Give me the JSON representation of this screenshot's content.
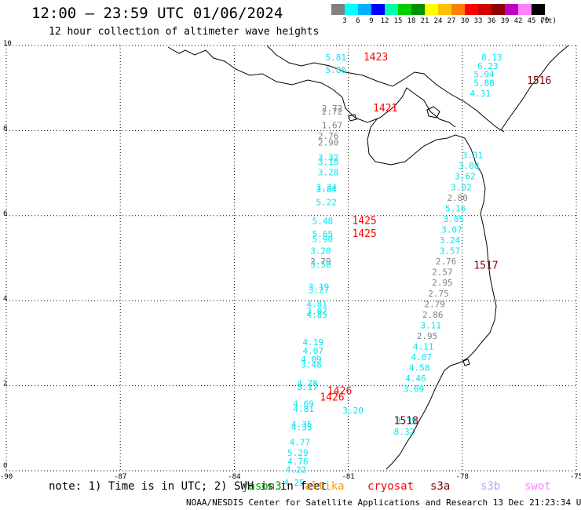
{
  "title": "12:00 – 23:59 UTC 01/06/2024",
  "subtitle": "12 hour collection of altimeter wave heights",
  "legend": {
    "unit": "(ft)",
    "ticks": [
      "3",
      "6",
      "9",
      "12",
      "15",
      "18",
      "21",
      "24",
      "27",
      "30",
      "33",
      "36",
      "39",
      "42",
      "45",
      "70"
    ],
    "colors": [
      "#808080",
      "#00ffff",
      "#00b0ff",
      "#0000ff",
      "#00ffaa",
      "#00d000",
      "#009000",
      "#ffff00",
      "#ffc000",
      "#ff8000",
      "#ff0000",
      "#d00000",
      "#900000",
      "#c000c0",
      "#ff80ff",
      "#000000"
    ]
  },
  "axes": {
    "x_ticks": [
      "-90",
      "-87",
      "-84",
      "-81",
      "-78",
      "-75"
    ],
    "y_ticks": [
      "0",
      "2",
      "4",
      "6",
      "8",
      "10"
    ]
  },
  "note": "note: 1) Time is in UTC; 2) SWH is in feet",
  "satellites": [
    {
      "name": "jason3",
      "color": "#00a000"
    },
    {
      "name": "altika",
      "color": "#ff9900"
    },
    {
      "name": "cryosat",
      "color": "#ff0000"
    },
    {
      "name": "s3a",
      "color": "#800000"
    },
    {
      "name": "s3b",
      "color": "#c0a0ff"
    },
    {
      "name": "swot",
      "color": "#ff80ff"
    }
  ],
  "footer": "NOAA/NESDIS Center for Satellite Applications and Research    13 Dec 21:23:34 UTC 2024",
  "colors": {
    "cyan": "#00e5ee",
    "gray": "#808080",
    "red": "#ff0000",
    "darkred": "#800000"
  },
  "map_data": {
    "lon_range": [
      -90,
      -75
    ],
    "lat_range": [
      0,
      10
    ],
    "time_labels": [
      {
        "text": "1423",
        "lon": -80.6,
        "lat": 9.65,
        "c": "red"
      },
      {
        "text": "1516",
        "lon": -76.3,
        "lat": 9.1,
        "c": "darkred"
      },
      {
        "text": "1421",
        "lon": -80.35,
        "lat": 8.45,
        "c": "red"
      },
      {
        "text": "1425",
        "lon": -80.9,
        "lat": 5.8,
        "c": "red"
      },
      {
        "text": "1425",
        "lon": -80.9,
        "lat": 5.5,
        "c": "red"
      },
      {
        "text": "1517",
        "lon": -77.7,
        "lat": 4.75,
        "c": "darkred"
      },
      {
        "text": "1426",
        "lon": -81.55,
        "lat": 1.8,
        "c": "red"
      },
      {
        "text": "1426",
        "lon": -81.75,
        "lat": 1.65,
        "c": "red"
      },
      {
        "text": "1518",
        "lon": -79.8,
        "lat": 1.1,
        "c": "darkred"
      }
    ],
    "wave_heights": [
      {
        "text": "5.81",
        "lon": -81.6,
        "lat": 9.65,
        "c": "cyan"
      },
      {
        "text": "5.80",
        "lon": -81.6,
        "lat": 9.35,
        "c": "cyan"
      },
      {
        "text": "8.13",
        "lon": -77.5,
        "lat": 9.65,
        "c": "cyan"
      },
      {
        "text": "6.23",
        "lon": -77.6,
        "lat": 9.45,
        "c": "cyan"
      },
      {
        "text": "5.94",
        "lon": -77.7,
        "lat": 9.25,
        "c": "cyan"
      },
      {
        "text": "5.88",
        "lon": -77.7,
        "lat": 9.05,
        "c": "cyan"
      },
      {
        "text": "4.31",
        "lon": -77.8,
        "lat": 8.8,
        "c": "cyan"
      },
      {
        "text": "2.72",
        "lon": -81.7,
        "lat": 8.45,
        "c": "gray"
      },
      {
        "text": "2.72",
        "lon": -81.7,
        "lat": 8.38,
        "c": "gray"
      },
      {
        "text": "1.67",
        "lon": -81.7,
        "lat": 8.05,
        "c": "gray"
      },
      {
        "text": "2.76",
        "lon": -81.8,
        "lat": 7.8,
        "c": "gray"
      },
      {
        "text": "2.90",
        "lon": -81.8,
        "lat": 7.65,
        "c": "gray"
      },
      {
        "text": "3.32",
        "lon": -81.8,
        "lat": 7.3,
        "c": "cyan"
      },
      {
        "text": "3.18",
        "lon": -81.8,
        "lat": 7.2,
        "c": "cyan"
      },
      {
        "text": "3.28",
        "lon": -81.8,
        "lat": 6.95,
        "c": "cyan"
      },
      {
        "text": "3.31",
        "lon": -78.0,
        "lat": 7.35,
        "c": "cyan"
      },
      {
        "text": "3.08",
        "lon": -78.1,
        "lat": 7.1,
        "c": "cyan"
      },
      {
        "text": "3.62",
        "lon": -78.2,
        "lat": 6.85,
        "c": "cyan"
      },
      {
        "text": "3.02",
        "lon": -78.3,
        "lat": 6.6,
        "c": "cyan"
      },
      {
        "text": "3.34",
        "lon": -81.85,
        "lat": 6.6,
        "c": "cyan"
      },
      {
        "text": "3.84",
        "lon": -81.85,
        "lat": 6.55,
        "c": "cyan"
      },
      {
        "text": "2.80",
        "lon": -78.4,
        "lat": 6.35,
        "c": "gray"
      },
      {
        "text": "5.22",
        "lon": -81.85,
        "lat": 6.25,
        "c": "cyan"
      },
      {
        "text": "5.16",
        "lon": -78.45,
        "lat": 6.1,
        "c": "cyan"
      },
      {
        "text": "3.05",
        "lon": -78.5,
        "lat": 5.85,
        "c": "cyan"
      },
      {
        "text": "5.48",
        "lon": -81.95,
        "lat": 5.8,
        "c": "cyan"
      },
      {
        "text": "3.07",
        "lon": -78.55,
        "lat": 5.6,
        "c": "cyan"
      },
      {
        "text": "5.65",
        "lon": -81.95,
        "lat": 5.5,
        "c": "cyan"
      },
      {
        "text": "5.90",
        "lon": -81.95,
        "lat": 5.38,
        "c": "cyan"
      },
      {
        "text": "3.24",
        "lon": -78.6,
        "lat": 5.35,
        "c": "cyan"
      },
      {
        "text": "3.20",
        "lon": -82.0,
        "lat": 5.1,
        "c": "cyan"
      },
      {
        "text": "3.57",
        "lon": -78.6,
        "lat": 5.1,
        "c": "cyan"
      },
      {
        "text": "2.79",
        "lon": -82.0,
        "lat": 4.85,
        "c": "gray"
      },
      {
        "text": "3.50",
        "lon": -82.0,
        "lat": 4.78,
        "c": "cyan"
      },
      {
        "text": "2.76",
        "lon": -78.7,
        "lat": 4.85,
        "c": "gray"
      },
      {
        "text": "2.57",
        "lon": -78.8,
        "lat": 4.6,
        "c": "gray"
      },
      {
        "text": "2.95",
        "lon": -78.8,
        "lat": 4.35,
        "c": "gray"
      },
      {
        "text": "3.19",
        "lon": -82.05,
        "lat": 4.25,
        "c": "cyan"
      },
      {
        "text": "3.27",
        "lon": -82.05,
        "lat": 4.18,
        "c": "cyan"
      },
      {
        "text": "2.75",
        "lon": -78.9,
        "lat": 4.1,
        "c": "gray"
      },
      {
        "text": "4.81",
        "lon": -82.1,
        "lat": 3.85,
        "c": "cyan"
      },
      {
        "text": "2.79",
        "lon": -79.0,
        "lat": 3.85,
        "c": "gray"
      },
      {
        "text": "3.02",
        "lon": -82.1,
        "lat": 3.68,
        "c": "cyan"
      },
      {
        "text": "4.85",
        "lon": -82.1,
        "lat": 3.6,
        "c": "cyan"
      },
      {
        "text": "2.86",
        "lon": -79.05,
        "lat": 3.6,
        "c": "gray"
      },
      {
        "text": "3.11",
        "lon": -79.1,
        "lat": 3.35,
        "c": "cyan"
      },
      {
        "text": "2.95",
        "lon": -79.2,
        "lat": 3.1,
        "c": "gray"
      },
      {
        "text": "4.19",
        "lon": -82.2,
        "lat": 2.95,
        "c": "cyan"
      },
      {
        "text": "4.11",
        "lon": -79.3,
        "lat": 2.85,
        "c": "cyan"
      },
      {
        "text": "4.07",
        "lon": -82.2,
        "lat": 2.75,
        "c": "cyan"
      },
      {
        "text": "4.07",
        "lon": -79.35,
        "lat": 2.6,
        "c": "cyan"
      },
      {
        "text": "4.09",
        "lon": -82.25,
        "lat": 2.55,
        "c": "cyan"
      },
      {
        "text": "3.48",
        "lon": -82.25,
        "lat": 2.43,
        "c": "cyan"
      },
      {
        "text": "4.58",
        "lon": -79.4,
        "lat": 2.35,
        "c": "cyan"
      },
      {
        "text": "4.46",
        "lon": -79.5,
        "lat": 2.1,
        "c": "cyan"
      },
      {
        "text": "4.78",
        "lon": -82.35,
        "lat": 1.98,
        "c": "cyan"
      },
      {
        "text": "3.17",
        "lon": -82.35,
        "lat": 1.9,
        "c": "cyan"
      },
      {
        "text": "3.69",
        "lon": -79.55,
        "lat": 1.85,
        "c": "cyan"
      },
      {
        "text": "4.69",
        "lon": -82.45,
        "lat": 1.5,
        "c": "cyan"
      },
      {
        "text": "4.81",
        "lon": -82.45,
        "lat": 1.38,
        "c": "cyan"
      },
      {
        "text": "3.20",
        "lon": -81.15,
        "lat": 1.35,
        "c": "cyan"
      },
      {
        "text": "3.35",
        "lon": -79.75,
        "lat": 1.1,
        "c": "cyan"
      },
      {
        "text": "4.35",
        "lon": -82.5,
        "lat": 1.02,
        "c": "cyan"
      },
      {
        "text": "4.35",
        "lon": -82.5,
        "lat": 0.95,
        "c": "cyan"
      },
      {
        "text": "8.32",
        "lon": -79.8,
        "lat": 0.85,
        "c": "cyan"
      },
      {
        "text": "4.77",
        "lon": -82.55,
        "lat": 0.6,
        "c": "cyan"
      },
      {
        "text": "5.29",
        "lon": -82.6,
        "lat": 0.35,
        "c": "cyan"
      },
      {
        "text": "4.76",
        "lon": -82.6,
        "lat": 0.15,
        "c": "cyan"
      },
      {
        "text": "4.22",
        "lon": -82.65,
        "lat": -0.05,
        "c": "cyan"
      },
      {
        "text": "4.25",
        "lon": -82.7,
        "lat": -0.35,
        "c": "cyan"
      }
    ]
  }
}
